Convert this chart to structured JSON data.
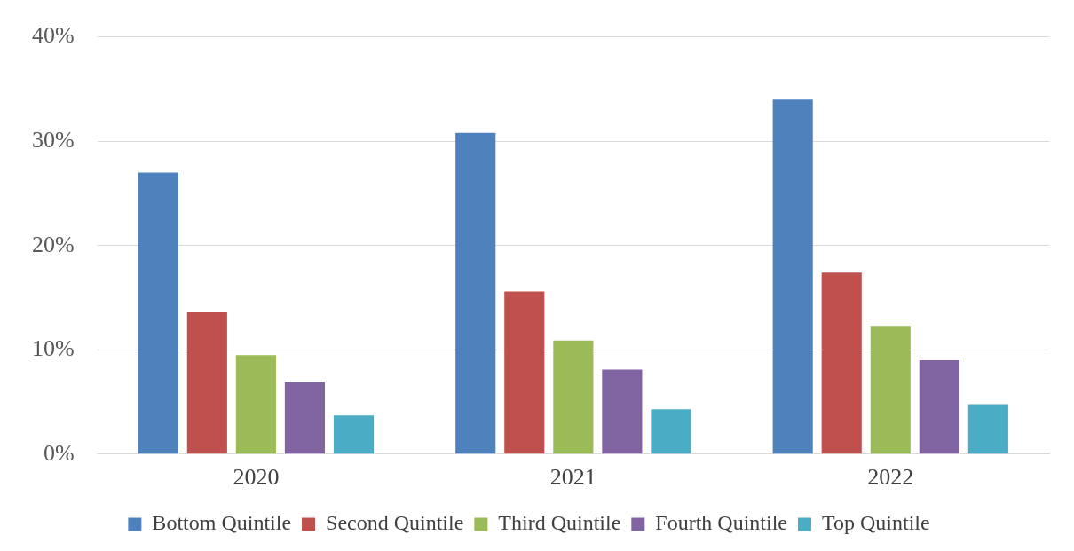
{
  "chart_data": {
    "type": "bar",
    "categories": [
      "2020",
      "2021",
      "2022"
    ],
    "series": [
      {
        "name": "Bottom Quintile",
        "color": "#4f81bd",
        "values": [
          27.0,
          30.8,
          34.0
        ]
      },
      {
        "name": "Second Quintile",
        "color": "#c0504d",
        "values": [
          13.6,
          15.6,
          17.4
        ]
      },
      {
        "name": "Third Quintile",
        "color": "#9bbb59",
        "values": [
          9.5,
          10.9,
          12.3
        ]
      },
      {
        "name": "Fourth Quintile",
        "color": "#8064a2",
        "values": [
          6.9,
          8.1,
          9.0
        ]
      },
      {
        "name": "Top Quintile",
        "color": "#4bacc6",
        "values": [
          3.7,
          4.3,
          4.8
        ]
      }
    ],
    "ylim": [
      0,
      40
    ],
    "yticks": [
      {
        "value": 0,
        "label": "0%"
      },
      {
        "value": 10,
        "label": "10%"
      },
      {
        "value": 20,
        "label": "20%"
      },
      {
        "value": 30,
        "label": "30%"
      },
      {
        "value": 40,
        "label": "40%"
      }
    ],
    "grid": "y",
    "legend": "bottom"
  }
}
